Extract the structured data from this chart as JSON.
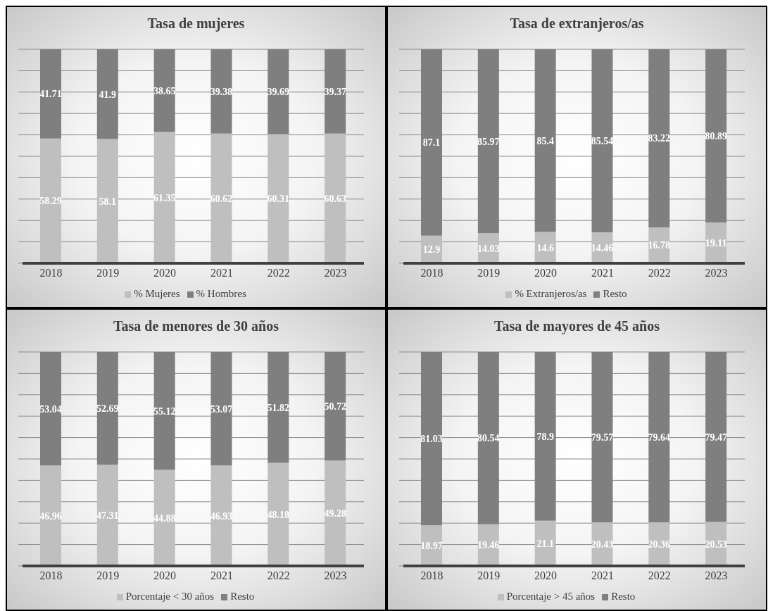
{
  "chart_data": [
    {
      "type": "bar",
      "title": "Tasa de mujeres",
      "categories": [
        "2018",
        "2019",
        "2020",
        "2021",
        "2022",
        "2023"
      ],
      "stacked": true,
      "data_labels": true,
      "ylim": [
        0,
        100
      ],
      "yticks": [
        {
          "value": 0,
          "label": null
        },
        {
          "value": 10,
          "label": null
        },
        {
          "value": 20,
          "label": null
        },
        {
          "value": 30,
          "label": null
        },
        {
          "value": 40,
          "label": null
        },
        {
          "value": 50,
          "label": null
        },
        {
          "value": 60,
          "label": null
        },
        {
          "value": 70,
          "label": null
        },
        {
          "value": 80,
          "label": null
        },
        {
          "value": 90,
          "label": null
        },
        {
          "value": 100,
          "label": null
        }
      ],
      "tick_labels": "x",
      "grid": "y",
      "legend": "bottom",
      "series": [
        {
          "name": "% Mujeres",
          "color": "#bfbfbf",
          "values": [
            58.29,
            58.1,
            61.35,
            60.62,
            60.31,
            60.63
          ]
        },
        {
          "name": "% Hombres",
          "color": "#7f7f7f",
          "values": [
            41.71,
            41.9,
            38.65,
            39.38,
            39.69,
            39.37
          ]
        }
      ]
    },
    {
      "type": "bar",
      "title": "Tasa de extranjeros/as",
      "categories": [
        "2018",
        "2019",
        "2020",
        "2021",
        "2022",
        "2023"
      ],
      "stacked": true,
      "data_labels": true,
      "ylim": [
        0,
        100
      ],
      "yticks": [
        {
          "value": 0,
          "label": null
        },
        {
          "value": 10,
          "label": null
        },
        {
          "value": 20,
          "label": null
        },
        {
          "value": 30,
          "label": null
        },
        {
          "value": 40,
          "label": null
        },
        {
          "value": 50,
          "label": null
        },
        {
          "value": 60,
          "label": null
        },
        {
          "value": 70,
          "label": null
        },
        {
          "value": 80,
          "label": null
        },
        {
          "value": 90,
          "label": null
        },
        {
          "value": 100,
          "label": null
        }
      ],
      "tick_labels": "x",
      "grid": "y",
      "legend": "bottom",
      "series": [
        {
          "name": "% Extranjeros/as",
          "color": "#bfbfbf",
          "values": [
            12.9,
            14.03,
            14.6,
            14.46,
            16.78,
            19.11
          ]
        },
        {
          "name": "Resto",
          "color": "#7f7f7f",
          "values": [
            87.1,
            85.97,
            85.4,
            85.54,
            83.22,
            80.89
          ]
        }
      ]
    },
    {
      "type": "bar",
      "title": "Tasa de menores de 30 años",
      "categories": [
        "2018",
        "2019",
        "2020",
        "2021",
        "2022",
        "2023"
      ],
      "stacked": true,
      "data_labels": true,
      "ylim": [
        0,
        100
      ],
      "yticks": [
        {
          "value": 0,
          "label": null
        },
        {
          "value": 10,
          "label": null
        },
        {
          "value": 20,
          "label": null
        },
        {
          "value": 30,
          "label": null
        },
        {
          "value": 40,
          "label": null
        },
        {
          "value": 50,
          "label": null
        },
        {
          "value": 60,
          "label": null
        },
        {
          "value": 70,
          "label": null
        },
        {
          "value": 80,
          "label": null
        },
        {
          "value": 90,
          "label": null
        },
        {
          "value": 100,
          "label": null
        }
      ],
      "tick_labels": "x",
      "grid": "y",
      "legend": "bottom",
      "series": [
        {
          "name": "Porcentaje < 30 años",
          "color": "#bfbfbf",
          "values": [
            46.96,
            47.31,
            44.88,
            46.93,
            48.18,
            49.28
          ]
        },
        {
          "name": "Resto",
          "color": "#7f7f7f",
          "values": [
            53.04,
            52.69,
            55.12,
            53.07,
            51.82,
            50.72
          ]
        }
      ]
    },
    {
      "type": "bar",
      "title": "Tasa de mayores de 45 años",
      "categories": [
        "2018",
        "2019",
        "2020",
        "2021",
        "2022",
        "2023"
      ],
      "stacked": true,
      "data_labels": true,
      "ylim": [
        0,
        100
      ],
      "yticks": [
        {
          "value": 0,
          "label": null
        },
        {
          "value": 10,
          "label": null
        },
        {
          "value": 20,
          "label": null
        },
        {
          "value": 30,
          "label": null
        },
        {
          "value": 40,
          "label": null
        },
        {
          "value": 50,
          "label": null
        },
        {
          "value": 60,
          "label": null
        },
        {
          "value": 70,
          "label": null
        },
        {
          "value": 80,
          "label": null
        },
        {
          "value": 90,
          "label": null
        },
        {
          "value": 100,
          "label": null
        }
      ],
      "tick_labels": "x",
      "grid": "y",
      "legend": "bottom",
      "series": [
        {
          "name": "Porcentaje > 45 años",
          "color": "#bfbfbf",
          "values": [
            18.97,
            19.46,
            21.1,
            20.43,
            20.36,
            20.53
          ]
        },
        {
          "name": "Resto",
          "color": "#7f7f7f",
          "values": [
            81.03,
            80.54,
            78.9,
            79.57,
            79.64,
            79.47
          ]
        }
      ]
    }
  ]
}
